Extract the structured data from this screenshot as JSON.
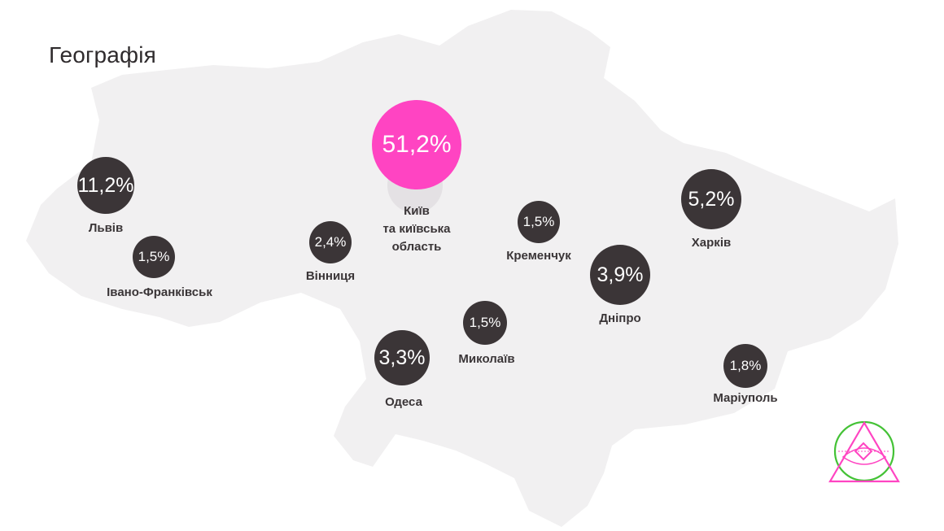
{
  "title": "Географія",
  "colors": {
    "map": "#f1f0f1",
    "bubble": "#3b3537",
    "kyiv": "#ff44c2",
    "logo_green": "#44c236",
    "logo_pink": "#ff44c2"
  },
  "regions": [
    {
      "id": "kyiv",
      "name_lines": [
        "Київ",
        "та київська",
        "область"
      ],
      "value": "51,2%"
    },
    {
      "id": "lviv",
      "name_lines": [
        "Львів"
      ],
      "value": "11,2%"
    },
    {
      "id": "ivano-frankivsk",
      "name_lines": [
        "Івано-Франківськ"
      ],
      "value": "1,5%"
    },
    {
      "id": "vinnytsia",
      "name_lines": [
        "Вінниця"
      ],
      "value": "2,4%"
    },
    {
      "id": "kremenchuk",
      "name_lines": [
        "Кременчук"
      ],
      "value": "1,5%"
    },
    {
      "id": "kharkiv",
      "name_lines": [
        "Харків"
      ],
      "value": "5,2%"
    },
    {
      "id": "dnipro",
      "name_lines": [
        "Дніпро"
      ],
      "value": "3,9%"
    },
    {
      "id": "mykolaiv",
      "name_lines": [
        "Миколаїв"
      ],
      "value": "1,5%"
    },
    {
      "id": "odesa",
      "name_lines": [
        "Одеса"
      ],
      "value": "3,3%"
    },
    {
      "id": "mariupol",
      "name_lines": [
        "Маріуполь"
      ],
      "value": "1,8%"
    }
  ]
}
